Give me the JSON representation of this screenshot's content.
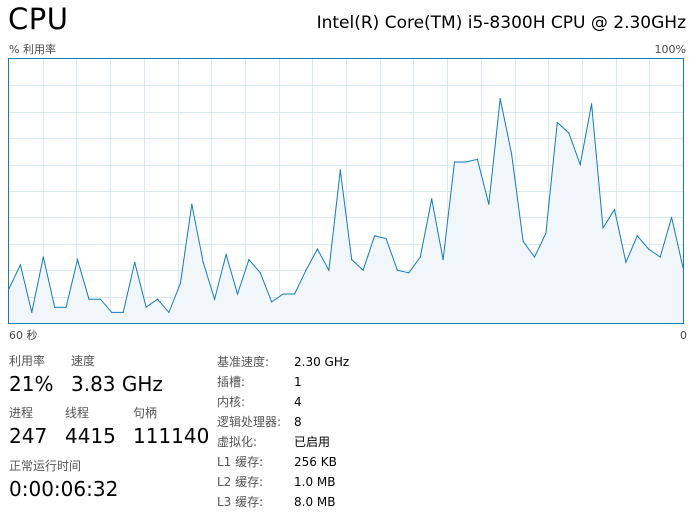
{
  "header": {
    "title": "CPU",
    "cpu_model": "Intel(R) Core(TM) i5-8300H CPU @ 2.30GHz"
  },
  "graph": {
    "y_label": "% 利用率",
    "y_max_label": "100%",
    "x_left_label": "60 秒",
    "x_right_label": "0",
    "line_color": "#117dbb",
    "fill_color": "#f1f6fa",
    "grid_color": "#d9eaf4"
  },
  "chart_data": {
    "type": "area",
    "ylim": [
      0,
      100
    ],
    "values": [
      13,
      22,
      4,
      25,
      6,
      6,
      24,
      9,
      9,
      4,
      4,
      23,
      6,
      9,
      4,
      15,
      45,
      23,
      9,
      26,
      11,
      24,
      19,
      8,
      11,
      11,
      20,
      28,
      20,
      58,
      24,
      20,
      33,
      32,
      20,
      19,
      25,
      47,
      24,
      61,
      61,
      62,
      45,
      85,
      64,
      31,
      25,
      34,
      76,
      72,
      60,
      83,
      36,
      43,
      23,
      33,
      28,
      25,
      40,
      21
    ]
  },
  "stats": {
    "utilization_label": "利用率",
    "utilization_value": "21%",
    "speed_label": "速度",
    "speed_value": "3.83 GHz",
    "processes_label": "进程",
    "processes_value": "247",
    "threads_label": "线程",
    "threads_value": "4415",
    "handles_label": "句柄",
    "handles_value": "111140",
    "uptime_label": "正常运行时间",
    "uptime_value": "0:00:06:32"
  },
  "details": [
    {
      "label": "基准速度:",
      "value": "2.30 GHz"
    },
    {
      "label": "插槽:",
      "value": "1"
    },
    {
      "label": "内核:",
      "value": "4"
    },
    {
      "label": "逻辑处理器:",
      "value": "8"
    },
    {
      "label": "虚拟化:",
      "value": "已启用"
    },
    {
      "label": "L1 缓存:",
      "value": "256 KB"
    },
    {
      "label": "L2 缓存:",
      "value": "1.0 MB"
    },
    {
      "label": "L3 缓存:",
      "value": "8.0 MB"
    }
  ]
}
